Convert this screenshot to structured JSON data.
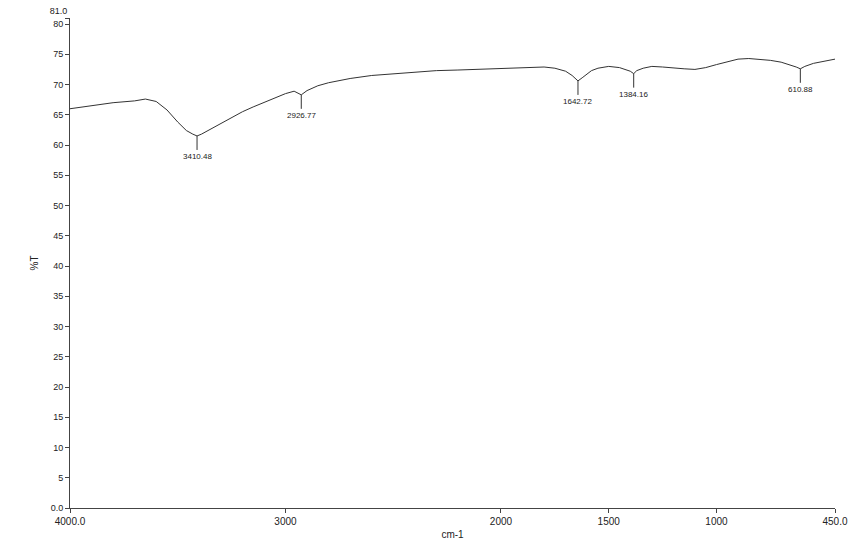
{
  "chart_data": {
    "type": "line",
    "x_label": "cm-1",
    "y_label": "%T",
    "color": "#333333",
    "grid": false,
    "xlim": [
      4000,
      450
    ],
    "xticks": [
      {
        "value": 4000,
        "label": "4000.0"
      },
      3000,
      2000,
      1500,
      1000,
      {
        "value": 450,
        "label": "450.0"
      }
    ],
    "ylim": [
      0,
      81
    ],
    "yticks": [
      {
        "value": 0,
        "label": "0.0"
      },
      5,
      10,
      15,
      20,
      25,
      30,
      35,
      40,
      45,
      50,
      55,
      60,
      65,
      70,
      75,
      80,
      {
        "value": 81,
        "label": "81.0"
      }
    ],
    "x": [
      4000,
      3900,
      3800,
      3700,
      3650,
      3600,
      3550,
      3500,
      3460,
      3430,
      3410.48,
      3390,
      3350,
      3300,
      3250,
      3200,
      3150,
      3100,
      3050,
      3000,
      2960,
      2926.77,
      2900,
      2850,
      2800,
      2700,
      2600,
      2500,
      2400,
      2300,
      2200,
      2100,
      2000,
      1900,
      1800,
      1750,
      1700,
      1670,
      1642.72,
      1620,
      1580,
      1550,
      1500,
      1450,
      1420,
      1400,
      1384.16,
      1370,
      1340,
      1300,
      1250,
      1200,
      1150,
      1100,
      1050,
      1000,
      950,
      900,
      850,
      800,
      750,
      700,
      650,
      630,
      610.88,
      590,
      550,
      500,
      450
    ],
    "values": [
      66.0,
      66.5,
      67.0,
      67.3,
      67.6,
      67.2,
      65.8,
      63.8,
      62.4,
      61.8,
      61.5,
      61.8,
      62.6,
      63.6,
      64.6,
      65.5,
      66.3,
      67.0,
      67.8,
      68.5,
      68.9,
      68.3,
      69.0,
      69.8,
      70.3,
      71.0,
      71.5,
      71.8,
      72.0,
      72.3,
      72.4,
      72.5,
      72.6,
      72.8,
      72.9,
      72.7,
      72.2,
      71.5,
      70.6,
      71.2,
      72.3,
      72.7,
      73.0,
      72.8,
      72.5,
      72.2,
      71.8,
      72.3,
      72.7,
      73.0,
      72.9,
      72.7,
      72.6,
      72.5,
      72.8,
      73.3,
      73.8,
      74.2,
      74.3,
      74.2,
      74.0,
      73.7,
      73.2,
      72.9,
      72.6,
      73.0,
      73.5,
      73.8,
      74.2
    ],
    "annotations": [
      {
        "x": 3410.48,
        "y": 61.5,
        "text": "3410.48"
      },
      {
        "x": 2926.77,
        "y": 68.3,
        "text": "2926.77"
      },
      {
        "x": 1642.72,
        "y": 70.6,
        "text": "1642.72"
      },
      {
        "x": 1384.16,
        "y": 71.8,
        "text": "1384.16"
      },
      {
        "x": 610.88,
        "y": 72.6,
        "text": "610.88"
      }
    ]
  }
}
